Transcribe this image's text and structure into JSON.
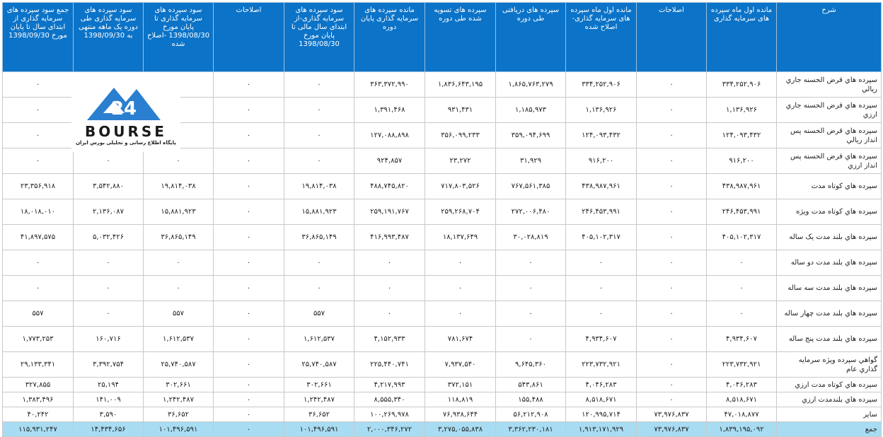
{
  "columns": [
    "شرح",
    "مانده اول ماه سپرده های سرمایه گذاری",
    "اصلاحات",
    "مانده اول ماه سپرده های سرمایه گذاری-اصلاح شده",
    "سپرده های دریافتی طی دوره",
    "سپرده های تسویه شده طی دوره",
    "مانده سپرده های سرمایه گذاری پایان دوره",
    "سود سپرده های سرمایه گذاری-از ابتدای سال مالی تا پایان مورخ 1398/08/30",
    "اصلاحات",
    "سود سپرده های سرمایه گذاری تا پایان مورخ 1398/08/30 -اصلاح شده",
    "سود سپرده های سرمایه گذاری طی دوره یک ماهه منتهی به 1398/09/30",
    "جمع سود سپرده های سرمایه گذاری از ابتدای سال تا پایان مورخ 1398/09/30"
  ],
  "rows": [
    [
      "سپرده هاي قرض الحسنه جاري ريالي",
      "۳۳۴,۲۵۲,۹۰۶",
      "۰",
      "۳۳۴,۲۵۲,۹۰۶",
      "۱,۸۶۵,۷۶۳,۲۷۹",
      "۱,۸۳۶,۶۴۳,۱۹۵",
      "۳۶۳,۳۷۲,۹۹۰",
      "۰",
      "۰",
      "۰",
      "۰",
      "۰"
    ],
    [
      "سپرده هاي قرض الحسنه جاري ارزي",
      "۱,۱۳۶,۹۲۶",
      "۰",
      "۱,۱۳۶,۹۲۶",
      "۱,۱۸۵,۹۷۳",
      "۹۳۱,۴۳۱",
      "۱,۳۹۱,۴۶۸",
      "۰",
      "۰",
      "۰",
      "۰",
      "۰"
    ],
    [
      "سپرده هاي قرض الحسنه پس انداز ريالي",
      "۱۲۴,۰۹۳,۴۳۲",
      "۰",
      "۱۲۴,۰۹۳,۴۳۲",
      "۳۵۹,۰۹۴,۶۹۹",
      "۳۵۶,۰۹۹,۲۳۳",
      "۱۲۷,۰۸۸,۸۹۸",
      "۰",
      "۰",
      "۰",
      "۰",
      "۰"
    ],
    [
      "سپرده هاي قرض الحسنه پس انداز ارزي",
      "۹۱۶,۲۰۰",
      "۰",
      "۹۱۶,۲۰۰",
      "۳۱,۹۲۹",
      "۲۳,۲۷۲",
      "۹۲۴,۸۵۷",
      "۰",
      "۰",
      "۰",
      "۰",
      "۰"
    ],
    [
      "سپرده هاي کوتاه مدت",
      "۴۳۸,۹۸۷,۹۶۱",
      "۰",
      "۴۳۸,۹۸۷,۹۶۱",
      "۷۶۷,۵۶۱,۳۸۵",
      "۷۱۷,۸۰۳,۵۲۶",
      "۴۸۸,۷۴۵,۸۲۰",
      "۱۹,۸۱۴,۰۳۸",
      "۰",
      "۱۹,۸۱۴,۰۳۸",
      "۳,۵۴۲,۸۸۰",
      "۲۳,۳۵۶,۹۱۸"
    ],
    [
      "سپرده هاي کوتاه مدت ويژه",
      "۲۴۶,۴۵۳,۹۹۱",
      "۰",
      "۲۴۶,۴۵۳,۹۹۱",
      "۲۷۲,۰۰۶,۴۸۰",
      "۲۵۹,۲۶۸,۷۰۴",
      "۲۵۹,۱۹۱,۷۶۷",
      "۱۵,۸۸۱,۹۲۳",
      "۰",
      "۱۵,۸۸۱,۹۲۳",
      "۲,۱۳۶,۰۸۷",
      "۱۸,۰۱۸,۰۱۰"
    ],
    [
      "سپرده هاي بلند مدت يک ساله",
      "۴۰۵,۱۰۲,۳۱۷",
      "۰",
      "۴۰۵,۱۰۲,۳۱۷",
      "۳۰,۰۲۸,۸۱۹",
      "۱۸,۱۳۷,۶۴۹",
      "۴۱۶,۹۹۳,۴۸۷",
      "۳۶,۸۶۵,۱۴۹",
      "۰",
      "۳۶,۸۶۵,۱۴۹",
      "۵,۰۳۲,۴۲۶",
      "۴۱,۸۹۷,۵۷۵"
    ],
    [
      "سپرده هاي بلند مدت دو ساله",
      "۰",
      "۰",
      "۰",
      "۰",
      "۰",
      "۰",
      "۰",
      "۰",
      "۰",
      "۰",
      "۰"
    ],
    [
      "سپرده هاي بلند مدت سه ساله",
      "۰",
      "۰",
      "۰",
      "۰",
      "۰",
      "۰",
      "۰",
      "۰",
      "۰",
      "۰",
      "۰"
    ],
    [
      "سپرده هاي بلند مدت چهار ساله",
      "۰",
      "۰",
      "۰",
      "۰",
      "۰",
      "۰",
      "۵۵۷",
      "۰",
      "۵۵۷",
      "۰",
      "۵۵۷"
    ],
    [
      "سپرده هاي بلند مدت پنج ساله",
      "۴,۹۳۴,۶۰۷",
      "۰",
      "۴,۹۳۴,۶۰۷",
      "۰",
      "۷۸۱,۶۷۴",
      "۴,۱۵۲,۹۳۳",
      "۱,۶۱۲,۵۳۷",
      "۰",
      "۱,۶۱۲,۵۳۷",
      "۱۶۰,۷۱۶",
      "۱,۷۷۳,۲۵۳"
    ],
    [
      "گواهي سپرده ويژه سرمايه گذاري عام",
      "۲۲۳,۷۳۲,۹۲۱",
      "۰",
      "۲۲۳,۷۳۲,۹۲۱",
      "۹,۶۴۵,۳۶۰",
      "۷,۹۳۷,۵۴۰",
      "۲۲۵,۴۴۰,۷۴۱",
      "۲۵,۷۴۰,۵۸۷",
      "۰",
      "۲۵,۷۴۰,۵۸۷",
      "۳,۳۹۲,۷۵۴",
      "۲۹,۱۳۳,۳۴۱"
    ],
    [
      "سپرده هاي کوتاه مدت ارزي",
      "۴,۰۴۶,۲۸۳",
      "۰",
      "۴,۰۴۶,۲۸۳",
      "۵۴۳,۸۶۱",
      "۳۷۲,۱۵۱",
      "۴,۲۱۷,۹۹۳",
      "۳۰۲,۶۶۱",
      "۰",
      "۳۰۲,۶۶۱",
      "۲۵,۱۹۴",
      "۳۲۷,۸۵۵"
    ],
    [
      "سپرده هاي بلندمدت ارزي",
      "۸,۵۱۸,۶۷۱",
      "۰",
      "۸,۵۱۸,۶۷۱",
      "۱۵۵,۴۸۸",
      "۱۱۸,۸۱۹",
      "۸,۵۵۵,۳۴۰",
      "۱,۲۴۲,۴۸۷",
      "۰",
      "۱,۲۴۲,۴۸۷",
      "۱۴۱,۰۰۹",
      "۱,۳۸۳,۴۹۶"
    ],
    [
      "ساير",
      "۴۷,۰۱۸,۸۷۷",
      "۷۳,۹۷۶,۸۳۷",
      "۱۲۰,۹۹۵,۷۱۴",
      "۵۶,۲۱۲,۹۰۸",
      "۷۶,۹۳۸,۶۴۴",
      "۱۰۰,۲۶۹,۹۷۸",
      "۳۶,۶۵۲",
      "۰",
      "۳۶,۶۵۲",
      "۳,۵۹۰",
      "۴۰,۲۴۲"
    ],
    [
      "جمع",
      "۱,۸۳۹,۱۹۵,۰۹۲",
      "۷۳,۹۷۶,۸۳۷",
      "۱,۹۱۳,۱۷۱,۹۲۹",
      "۳,۳۶۲,۲۳۰,۱۸۱",
      "۳,۲۷۵,۰۵۵,۸۳۸",
      "۲,۰۰۰,۳۴۶,۲۷۲",
      "۱۰۱,۴۹۶,۵۹۱",
      "۰",
      "۱۰۱,۴۹۶,۵۹۱",
      "۱۴,۴۳۴,۶۵۶",
      "۱۱۵,۹۳۱,۲۴۷"
    ]
  ],
  "logo": {
    "brand": "BOURSE",
    "number": "24",
    "tagline": "پایگاه اطلاع رسانی و تحلیلی بورس ایران",
    "blue": "#2b7fd0"
  },
  "colors": {
    "header_bg": "#0b73c8",
    "total_bg": "#a8dcf2"
  }
}
